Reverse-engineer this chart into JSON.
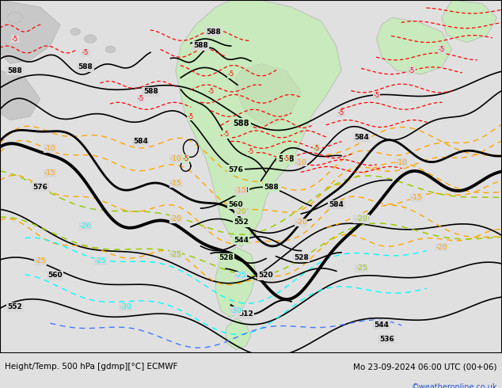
{
  "title_left": "Height/Temp. 500 hPa [gdmp][°C] ECMWF",
  "title_right": "Mo 23-09-2024 06:00 UTC (00+06)",
  "credit": "©weatheronline.co.uk",
  "bg_color": "#e0e0e0",
  "ocean_color": "#d8d8d8",
  "land_color": "#c8c8c8",
  "green_color": "#c8eabc",
  "figsize": [
    6.34,
    4.9
  ],
  "dpi": 100
}
